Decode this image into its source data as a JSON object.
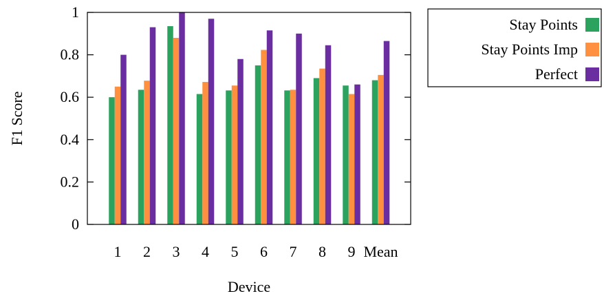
{
  "chart_data": {
    "type": "bar",
    "xlabel": "Device",
    "ylabel": "F1 Score",
    "ylim": [
      0,
      1
    ],
    "yticks": [
      0,
      0.2,
      0.4,
      0.6,
      0.8,
      1
    ],
    "ytick_labels": [
      "0",
      "0.2",
      "0.4",
      "0.6",
      "0.8",
      "1"
    ],
    "grid": false,
    "legend_position": "outside-right-top",
    "categories": [
      "1",
      "2",
      "3",
      "4",
      "5",
      "6",
      "7",
      "8",
      "9",
      "Mean"
    ],
    "series": [
      {
        "name": "Stay Points",
        "color": "#2ca25f",
        "values": [
          0.6,
          0.635,
          0.935,
          0.615,
          0.632,
          0.75,
          0.632,
          0.69,
          0.655,
          0.68
        ]
      },
      {
        "name": "Stay Points Imp",
        "color": "#ff9040",
        "values": [
          0.65,
          0.678,
          0.88,
          0.672,
          0.655,
          0.823,
          0.635,
          0.735,
          0.615,
          0.705
        ]
      },
      {
        "name": "Perfect",
        "color": "#6a2ea0",
        "values": [
          0.8,
          0.93,
          1.0,
          0.97,
          0.78,
          0.915,
          0.9,
          0.845,
          0.66,
          0.865
        ]
      }
    ]
  }
}
